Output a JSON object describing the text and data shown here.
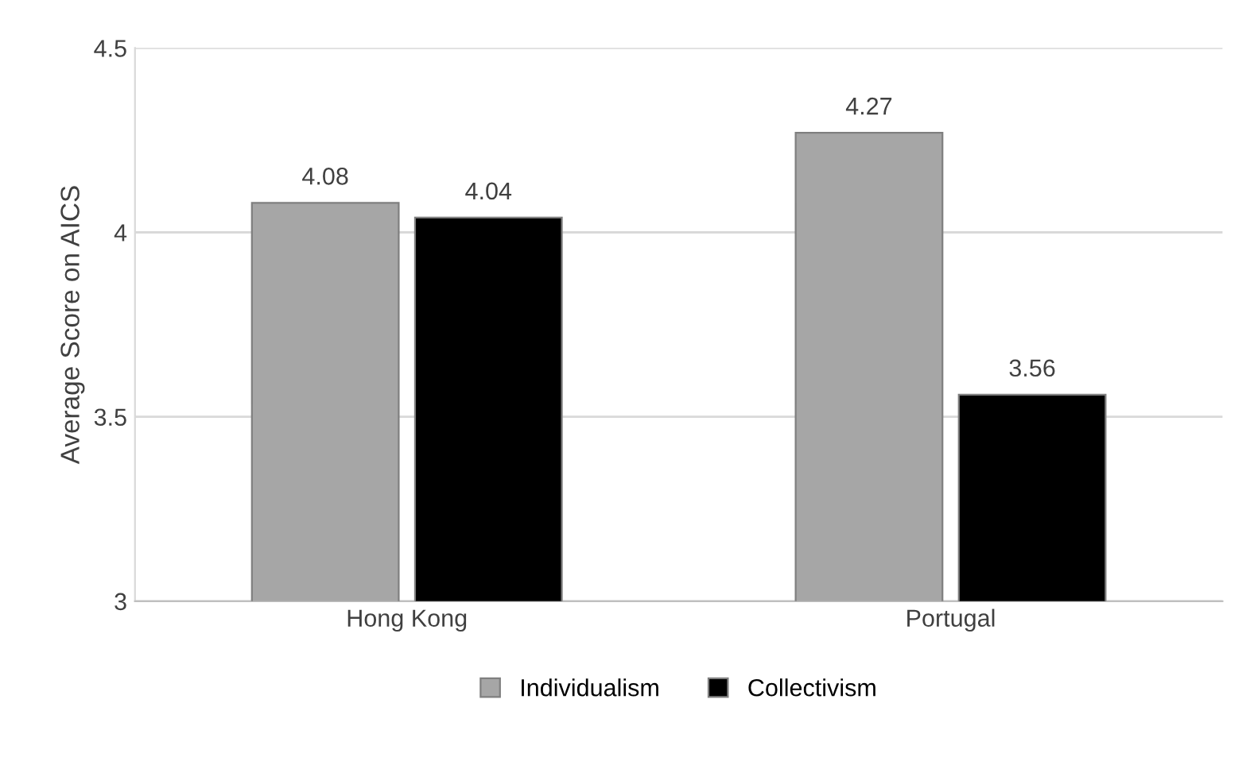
{
  "chart_data": {
    "type": "bar",
    "ylabel": "Average Score on AICS",
    "categories": [
      "Hong Kong",
      "Portugal"
    ],
    "series": [
      {
        "name": "Individualism",
        "color": "#a6a6a6",
        "values": [
          4.08,
          4.27
        ]
      },
      {
        "name": "Collectivism",
        "color": "#000000",
        "values": [
          4.04,
          3.56
        ]
      }
    ],
    "ylim": [
      3,
      4.5
    ],
    "yticks": [
      3,
      3.5,
      4,
      4.5
    ],
    "grid": "y",
    "legend": "bottom",
    "data_labels": true
  }
}
